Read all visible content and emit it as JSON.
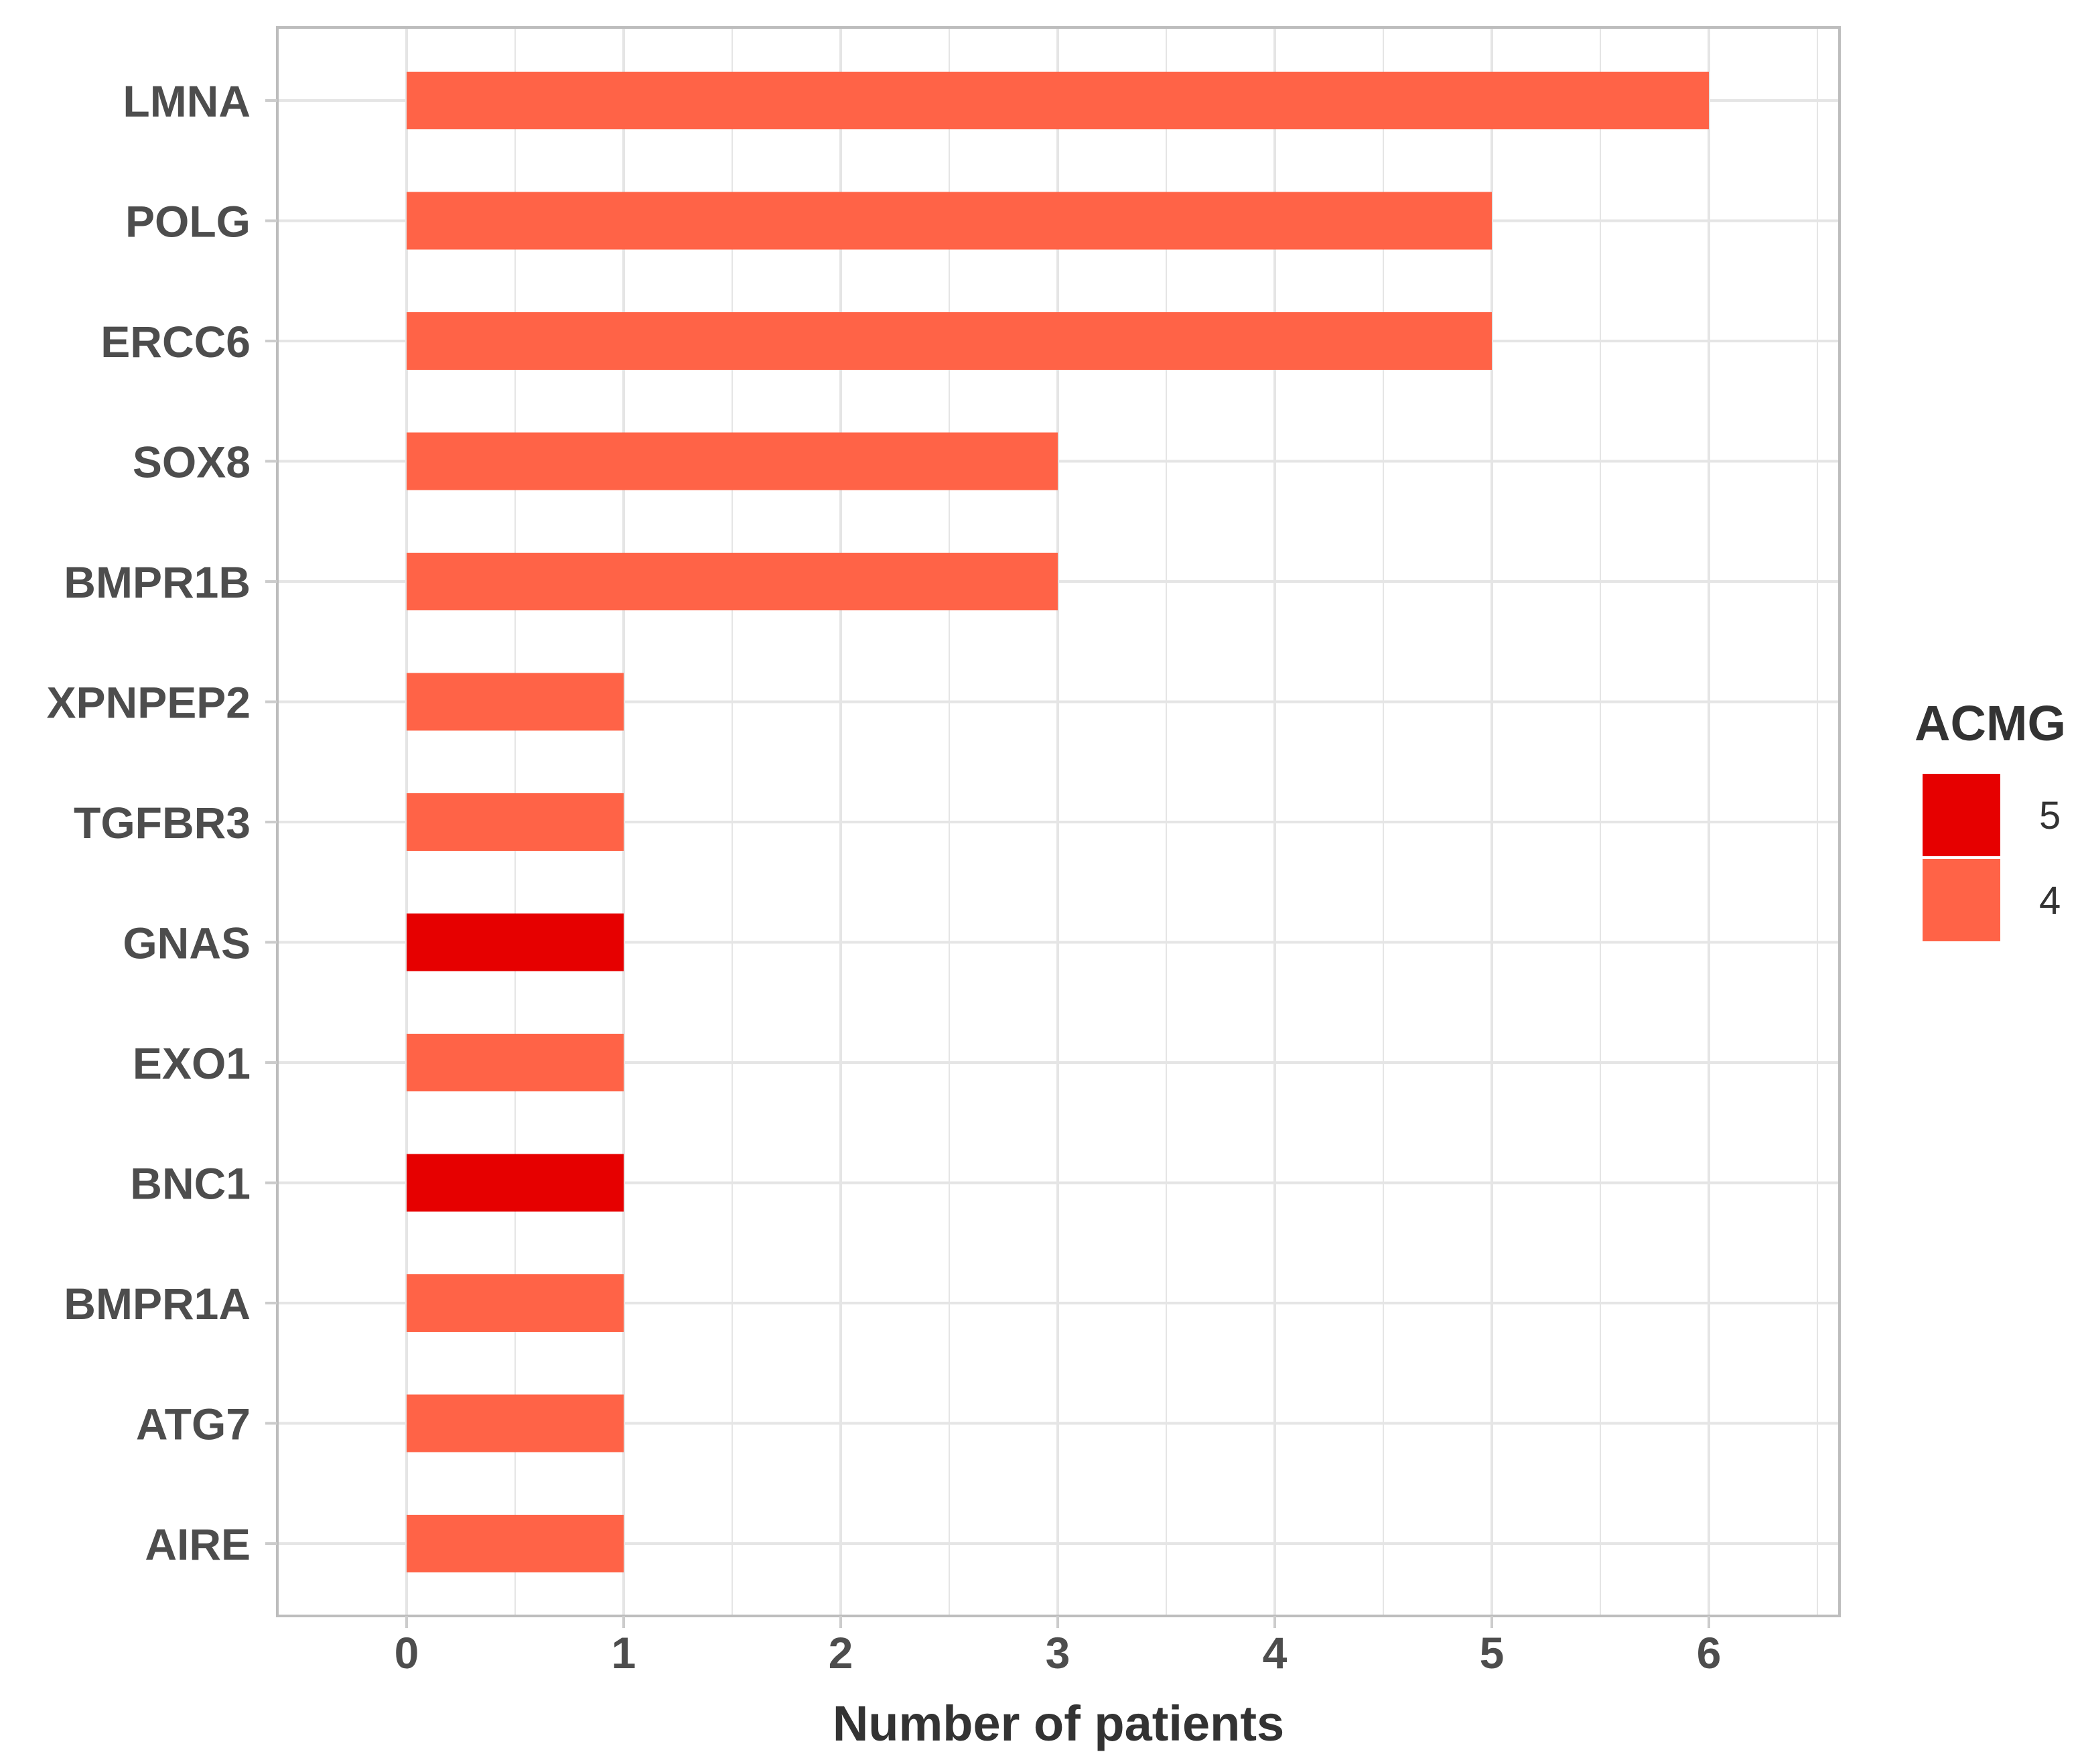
{
  "chart_data": {
    "type": "bar",
    "orientation": "horizontal",
    "categories": [
      "LMNA",
      "POLG",
      "ERCC6",
      "SOX8",
      "BMPR1B",
      "XPNPEP2",
      "TGFBR3",
      "GNAS",
      "EXO1",
      "BNC1",
      "BMPR1A",
      "ATG7",
      "AIRE"
    ],
    "values": [
      6,
      5,
      5,
      3,
      3,
      1,
      1,
      1,
      1,
      1,
      1,
      1,
      1
    ],
    "acmg": [
      "4",
      "4",
      "4",
      "4",
      "4",
      "4",
      "4",
      "5",
      "4",
      "5",
      "4",
      "4",
      "4"
    ],
    "title": "",
    "xlabel": "Number of patients",
    "ylabel": "",
    "xlim": [
      -0.6,
      6.6
    ],
    "xticks": [
      "0",
      "1",
      "2",
      "3",
      "4",
      "5",
      "6"
    ],
    "grid": true,
    "legend": {
      "title": "ACMG",
      "placement": "right",
      "items": [
        {
          "label": "5",
          "color": "#e60000"
        },
        {
          "label": "4",
          "color": "#ff6347"
        }
      ]
    }
  },
  "colors": {
    "panel_border": "#bdbdbd",
    "grid": "#e5e5e5",
    "tick_text": "#4d4d4d"
  }
}
